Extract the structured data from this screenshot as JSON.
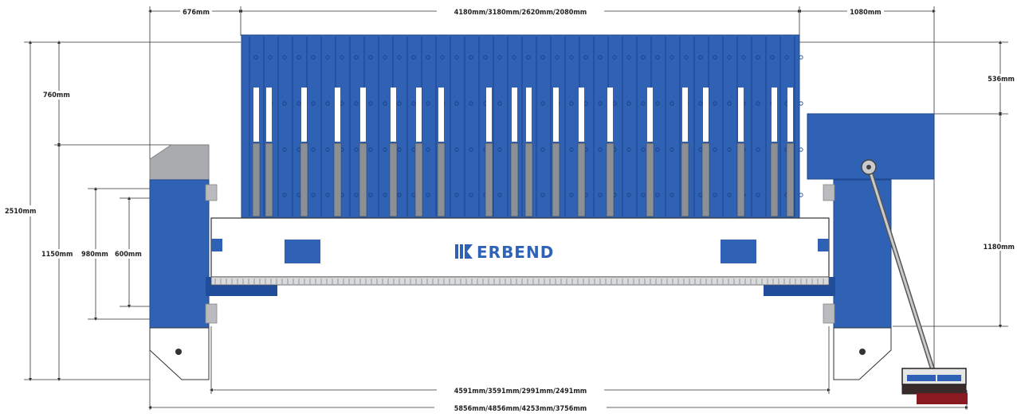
{
  "brand": {
    "name": "ERBEND",
    "logo_icon": "erbend-logo-icon"
  },
  "dimensions": {
    "top_left_offset": "676mm",
    "top_lengths": "4180mm/3180mm/2620mm/2080mm",
    "top_right_offset": "1080mm",
    "right_upper": "536mm",
    "right_lower": "1180mm",
    "left_total_height": "2510mm",
    "left_upper": "760mm",
    "left_lower": "1150mm",
    "inner_980": "980mm",
    "inner_600": "600mm",
    "bottom_inner_lengths": "4591mm/3591mm/2991mm/2491mm",
    "bottom_overall_lengths": "5856mm/4856mm/4253mm/3756mm"
  },
  "colors": {
    "machine_blue": "#2f62b5",
    "dark_blue": "#1f4d9a",
    "grey_cap": "#a9abae",
    "beam_white": "#ffffff",
    "dimension_line": "#333333"
  }
}
